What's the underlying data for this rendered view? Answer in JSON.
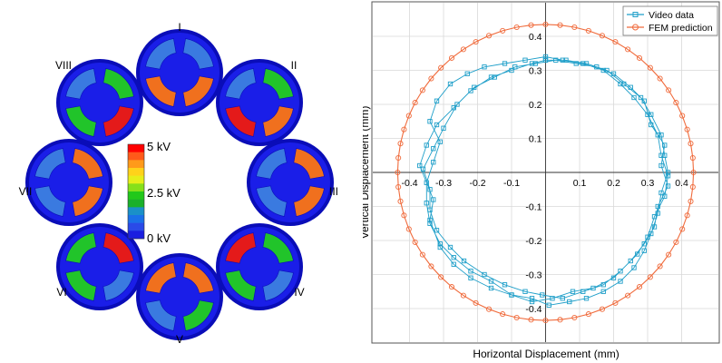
{
  "colors": {
    "disc": "#1a1ee8",
    "disc_dark": "#0a0db8",
    "ring": "#2a2ee6",
    "electrode_off": "#3a7ae0",
    "electrode_mid": "#21c42a",
    "electrode_high": "#f0701e",
    "electrode_max": "#e41a1a",
    "video": "#1f9fc9",
    "fem": "#f06b3c",
    "grid": "#d9d9d9"
  },
  "colorbar": {
    "labels": [
      "5 kV",
      "2.5 kV",
      "0 kV"
    ],
    "colors": [
      "#ff0000",
      "#ff5a1a",
      "#ff9a1a",
      "#ffd21a",
      "#e6ee1a",
      "#86e01a",
      "#22c81a",
      "#1ab02a",
      "#1a90c8",
      "#1a70e8",
      "#2a4ae8",
      "#1a1ee0"
    ]
  },
  "actuators": [
    {
      "roman": "I",
      "quadrants": [
        "off",
        "off",
        "high",
        "high"
      ]
    },
    {
      "roman": "II",
      "quadrants": [
        "off",
        "mid",
        "high",
        "max"
      ]
    },
    {
      "roman": "III",
      "quadrants": [
        "off",
        "high",
        "high",
        "off"
      ]
    },
    {
      "roman": "IV",
      "quadrants": [
        "max",
        "mid",
        "off",
        "mid"
      ]
    },
    {
      "roman": "V",
      "quadrants": [
        "high",
        "high",
        "mid",
        "off"
      ]
    },
    {
      "roman": "VI",
      "quadrants": [
        "mid",
        "max",
        "off",
        "mid"
      ]
    },
    {
      "roman": "VII",
      "quadrants": [
        "off",
        "high",
        "high",
        "off"
      ]
    },
    {
      "roman": "VIII",
      "quadrants": [
        "off",
        "mid",
        "max",
        "mid"
      ]
    }
  ],
  "chart_data": {
    "type": "line",
    "xlabel": "Horizontal Displacement (mm)",
    "ylabel": "Vertical Displacement (mm)",
    "xlim": [
      -0.46,
      0.46
    ],
    "ylim": [
      -0.46,
      0.46
    ],
    "xticks": [
      -0.4,
      -0.3,
      -0.2,
      -0.1,
      0.1,
      0.2,
      0.3,
      0.4
    ],
    "yticks": [
      0.4,
      0.3,
      0.2,
      0.1,
      -0.1,
      -0.2,
      -0.3,
      -0.4
    ],
    "grid": true,
    "legend": "top-right",
    "series": [
      {
        "name": "Video data",
        "marker": "square",
        "x": [
          0.0,
          0.06,
          0.12,
          0.18,
          0.23,
          0.28,
          0.31,
          0.34,
          0.35,
          0.36,
          0.34,
          0.33,
          0.31,
          0.29,
          0.26,
          0.22,
          0.17,
          0.12,
          0.07,
          0.01,
          -0.04,
          -0.1,
          -0.16,
          -0.22,
          -0.27,
          -0.31,
          -0.34,
          -0.35,
          -0.35,
          -0.33,
          -0.31,
          -0.34,
          -0.32,
          -0.28,
          -0.23,
          -0.18,
          -0.12,
          -0.06,
          0.0,
          0.05,
          0.11,
          0.17,
          0.22,
          0.26,
          0.3,
          0.33,
          0.34,
          0.36,
          0.35,
          0.32,
          0.3,
          0.27,
          0.22,
          0.17,
          0.11,
          0.05,
          -0.01,
          -0.06,
          -0.12,
          -0.18,
          -0.24,
          -0.28,
          -0.32,
          -0.34,
          -0.34,
          -0.36,
          -0.33,
          -0.3,
          -0.26,
          -0.21,
          -0.15,
          -0.09,
          -0.03,
          0.03,
          0.09,
          0.15,
          0.2,
          0.25,
          0.29,
          0.31,
          0.35,
          0.34,
          0.36,
          0.33,
          0.32,
          0.29,
          0.25,
          0.2,
          0.14,
          0.08,
          0.02,
          -0.04,
          -0.1,
          -0.16,
          -0.22,
          -0.27,
          -0.31,
          -0.34,
          -0.33,
          -0.37,
          -0.35,
          -0.32,
          -0.27,
          -0.22,
          -0.16,
          -0.1,
          -0.04,
          0.0
        ],
        "y": [
          0.33,
          0.33,
          0.32,
          0.3,
          0.26,
          0.22,
          0.17,
          0.11,
          0.05,
          0.0,
          -0.06,
          -0.12,
          -0.18,
          -0.23,
          -0.28,
          -0.32,
          -0.35,
          -0.37,
          -0.38,
          -0.39,
          -0.37,
          -0.36,
          -0.32,
          -0.29,
          -0.25,
          -0.21,
          -0.15,
          -0.09,
          -0.03,
          0.03,
          0.09,
          0.15,
          0.21,
          0.26,
          0.29,
          0.31,
          0.32,
          0.33,
          0.34,
          0.33,
          0.32,
          0.3,
          0.26,
          0.22,
          0.17,
          0.11,
          0.05,
          -0.01,
          -0.07,
          -0.13,
          -0.19,
          -0.24,
          -0.29,
          -0.33,
          -0.35,
          -0.37,
          -0.36,
          -0.35,
          -0.33,
          -0.3,
          -0.26,
          -0.22,
          -0.17,
          -0.11,
          -0.05,
          0.01,
          0.07,
          0.13,
          0.2,
          0.25,
          0.28,
          0.31,
          0.32,
          0.33,
          0.32,
          0.31,
          0.29,
          0.25,
          0.21,
          0.14,
          0.08,
          0.02,
          -0.04,
          -0.1,
          -0.16,
          -0.21,
          -0.26,
          -0.31,
          -0.34,
          -0.35,
          -0.37,
          -0.38,
          -0.36,
          -0.34,
          -0.31,
          -0.27,
          -0.22,
          -0.14,
          -0.08,
          0.02,
          0.08,
          0.14,
          0.19,
          0.24,
          0.28,
          0.3,
          0.32,
          0.33
        ]
      },
      {
        "name": "FEM prediction",
        "marker": "circle",
        "radius": 0.435,
        "points": 64
      }
    ]
  }
}
